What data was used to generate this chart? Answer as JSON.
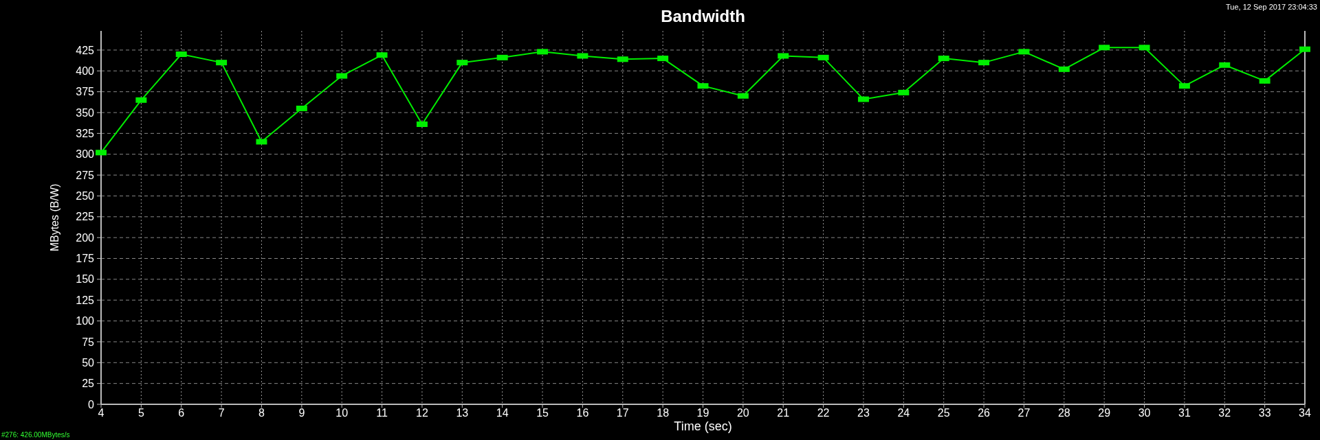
{
  "chart_data": {
    "type": "line",
    "title": "Bandwidth",
    "xlabel": "Time (sec)",
    "ylabel": "MBytes (B/W)",
    "x": [
      4,
      5,
      6,
      7,
      8,
      9,
      10,
      11,
      12,
      13,
      14,
      15,
      16,
      17,
      18,
      19,
      20,
      21,
      22,
      23,
      24,
      25,
      26,
      27,
      28,
      29,
      30,
      31,
      32,
      33,
      34
    ],
    "series": [
      {
        "color": "#00ee00",
        "values": [
          302,
          365,
          420,
          410,
          315,
          355,
          394,
          419,
          336,
          410,
          416,
          423,
          418,
          414,
          415,
          382,
          370,
          418,
          416,
          366,
          374,
          415,
          410,
          423,
          402,
          428,
          428,
          382,
          407,
          388,
          426
        ]
      }
    ],
    "xlim": [
      4,
      34
    ],
    "xticks": [
      4,
      5,
      6,
      7,
      8,
      9,
      10,
      11,
      12,
      13,
      14,
      15,
      16,
      17,
      18,
      19,
      20,
      21,
      22,
      23,
      24,
      25,
      26,
      27,
      28,
      29,
      30,
      31,
      32,
      33,
      34
    ],
    "ylim": [
      0,
      448
    ],
    "yticks": [
      0,
      25,
      50,
      75,
      100,
      125,
      150,
      175,
      200,
      225,
      250,
      275,
      300,
      325,
      350,
      375,
      400,
      425
    ],
    "grid": true,
    "marker": "square",
    "line_style": "solid",
    "annotations": [
      "Tue, 12 Sep 2017 23:04:33",
      "#276: 426.00MBytes/s"
    ]
  }
}
